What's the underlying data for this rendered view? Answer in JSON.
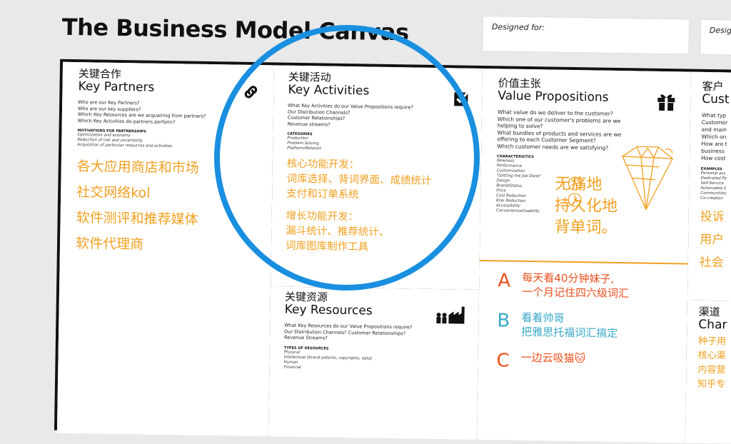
{
  "header": {
    "title": "The Business Model Canvas",
    "designed_for": "Designed for:",
    "designed_by": "Desig"
  },
  "key_partners": {
    "cn": "关键合作",
    "en": "Key Partners",
    "questions": [
      "Who are our Key Partners?",
      "Who are our key suppliers?",
      "Which Key Resources are we acquairing from partners?",
      "Which Key Activities do partners perform?"
    ],
    "sub_heading": "MOTIVATIONS FOR PARTNERSHIPS",
    "subs": [
      "Optimization and economy",
      "Reduction of risk and uncertainty",
      "Acquisition of particular resources and activities"
    ],
    "notes": [
      "各大应用商店和市场",
      "社交网络kol",
      "软件测评和推荐媒体",
      "软件代理商"
    ],
    "icon": "link-icon"
  },
  "key_activities": {
    "cn": "关键活动",
    "en": "Key Activities",
    "questions": [
      "What Key Activities do our Value Propositions require?",
      "Our Distribution Channels?",
      "Customer Relationships?",
      "Revenue streams?"
    ],
    "sub_heading": "CATEGORIES",
    "subs": [
      "Production",
      "Problem Solving",
      "Platform/Network"
    ],
    "notes": [
      "核心功能开发：",
      "词库选择、背词界面、成绩统计",
      "支付和订单系统",
      "增长功能开发：",
      "漏斗统计、推荐统计、",
      "词库图库制作工具"
    ],
    "icon": "checkbox-icon"
  },
  "key_resources": {
    "cn": "关键资源",
    "en": "Key Resources",
    "questions": [
      "What Key Resources do our Value Propositions require?",
      "Our Distribution Channels? Customer Relationships?",
      "Revenue Streams?"
    ],
    "sub_heading": "TYPES OF RESOURCES",
    "subs": [
      "Physical",
      "Intellectual (brand patents, copyrights, data)",
      "Human",
      "Financial"
    ],
    "icon": "factory-icon"
  },
  "value_propositions": {
    "cn": "价值主张",
    "en": "Value Propositions",
    "questions": [
      "What value do we deliver to the customer?",
      "Which one of our customer's problems are we",
      "helping to solve?",
      "What bundles of products and services are we",
      "offering to each Customer Segment?",
      "Which customer needs are we satisfying?"
    ],
    "sub_heading": "CHARACTERISTICS",
    "subs": [
      "Newness",
      "Performance",
      "Customization",
      "\"Getting the Job Done\"",
      "Design",
      "Brand/Status",
      "Price",
      "Cost Reduction",
      "Risk Reduction",
      "Accessibility",
      "Convenience/Usability"
    ],
    "notes": [
      "无痛地",
      "持久化地",
      "背单词。"
    ],
    "icon": "gift-icon"
  },
  "audiences": [
    {
      "letter": "A",
      "lines": [
        "每天看40分钟妹子,",
        "一个月记住四六级词汇"
      ],
      "color": "#e8501e"
    },
    {
      "letter": "B",
      "lines": [
        "看着帅哥",
        "把雅思托福词汇搞定"
      ],
      "color": "#3aa8c8"
    },
    {
      "letter": "C",
      "lines": [
        "一边云吸猫🐱"
      ],
      "color": "#e8501e"
    }
  ],
  "customer_relationships": {
    "cn": "客户",
    "en": "Cust",
    "questions": [
      "What typ",
      "Customer",
      "and main",
      "Which on",
      "How are t",
      "business",
      "How cost"
    ],
    "sub_heading": "EXAMPLES",
    "subs": [
      "Personal ass",
      "Dedicated Pe",
      "Self-Service",
      "Automated S",
      "Communities",
      "Co-creation"
    ],
    "notes": [
      "投诉",
      "用户",
      "社会"
    ]
  },
  "channels": {
    "cn": "渠道",
    "en": "Char",
    "notes": [
      "种子用",
      "核心渠",
      "内容营",
      "知乎专"
    ]
  }
}
